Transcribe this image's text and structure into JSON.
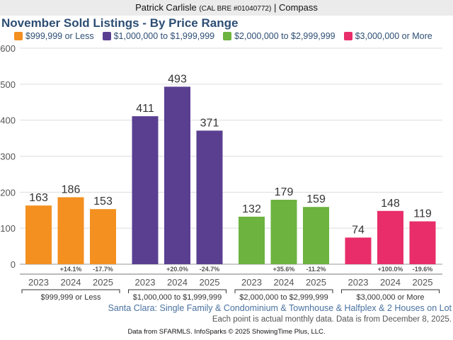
{
  "header": {
    "name": "Patrick Carlisle",
    "license": "(CAL BRE #01040772)",
    "separator": "|",
    "company": "Compass"
  },
  "chart_data": {
    "type": "bar",
    "title": "November Sold Listings - By Price Range",
    "ylim": [
      0,
      600
    ],
    "yticks": [
      0,
      100,
      200,
      300,
      400,
      500,
      600
    ],
    "grid": true,
    "legend_position": "top",
    "categories": [
      "2023",
      "2024",
      "2025"
    ],
    "series": [
      {
        "name": "$999,999 or Less",
        "color": "#f39020",
        "values": [
          163,
          186,
          153
        ],
        "changes": [
          "",
          "+14.1%",
          "-17.7%"
        ]
      },
      {
        "name": "$1,000,000 to $1,999,999",
        "color": "#5a3f91",
        "values": [
          411,
          493,
          371
        ],
        "changes": [
          "",
          "+20.0%",
          "-24.7%"
        ]
      },
      {
        "name": "$2,000,000 to $2,999,999",
        "color": "#6cb33f",
        "values": [
          132,
          179,
          159
        ],
        "changes": [
          "",
          "+35.6%",
          "-11.2%"
        ]
      },
      {
        "name": "$3,000,000 or More",
        "color": "#e82d6a",
        "values": [
          74,
          148,
          119
        ],
        "changes": [
          "",
          "+100.0%",
          "-19.6%"
        ]
      }
    ]
  },
  "subtitle": "Santa Clara: Single Family & Condominium & Townhouse & Halfplex & 2 Houses on Lot",
  "note": "Each point is actual monthly data. Data is from December 8, 2025.",
  "footer": "Data from SFARMLS. InfoSparks © 2025 ShowingTime Plus, LLC."
}
